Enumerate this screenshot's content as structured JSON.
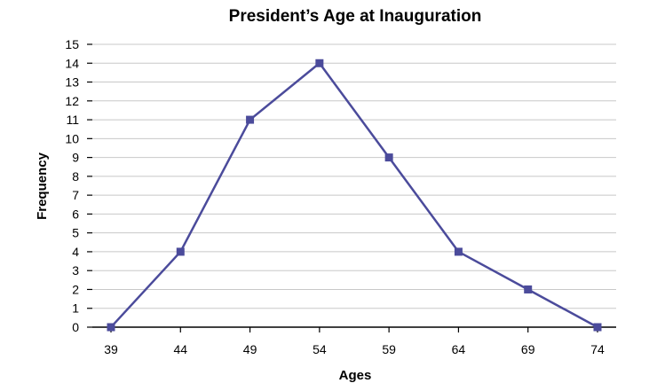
{
  "chart_data": {
    "type": "line",
    "title": "President’s Age at Inauguration",
    "xlabel": "Ages",
    "ylabel": "Frequency",
    "x": [
      39,
      44,
      49,
      54,
      59,
      64,
      69,
      74
    ],
    "series": [
      {
        "values": [
          0,
          4,
          11,
          14,
          9,
          4,
          2,
          0
        ]
      }
    ],
    "ylim": [
      0,
      15
    ],
    "yticks": [
      0,
      1,
      2,
      3,
      4,
      5,
      6,
      7,
      8,
      9,
      10,
      11,
      12,
      13,
      14,
      15
    ],
    "grid": true,
    "line_color": "#4b4b9b",
    "marker": "square"
  }
}
